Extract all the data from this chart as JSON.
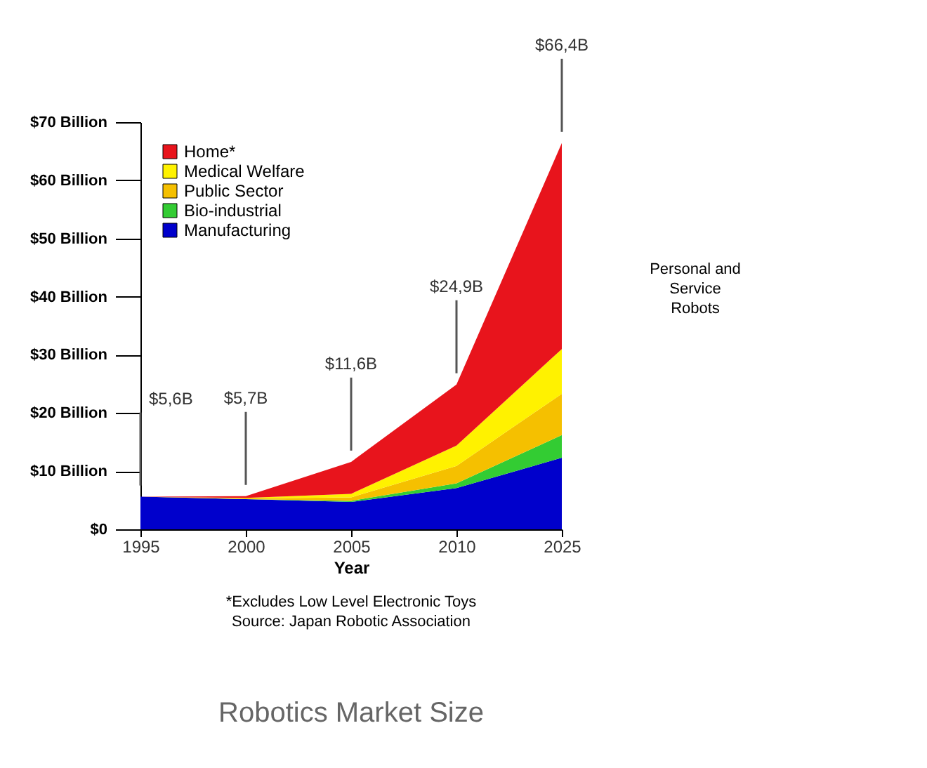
{
  "chart_data": {
    "type": "area",
    "stacked": true,
    "title": "Robotics Market Size",
    "xlabel": "Year",
    "categories": [
      "1995",
      "2000",
      "2005",
      "2010",
      "2025"
    ],
    "series": [
      {
        "name": "Manufacturing",
        "color": "#0000cc",
        "values": [
          5.6,
          5.2,
          4.7,
          7.1,
          12.3
        ]
      },
      {
        "name": "Bio-industrial",
        "color": "#33cc33",
        "values": [
          0,
          0,
          0.2,
          0.8,
          3.9
        ]
      },
      {
        "name": "Public Sector",
        "color": "#f5c000",
        "values": [
          0,
          0.1,
          0.6,
          3,
          7.1
        ]
      },
      {
        "name": "Medical Welfare",
        "color": "#fff200",
        "values": [
          0,
          0.1,
          0.6,
          3.5,
          7.7
        ]
      },
      {
        "name": "Home*",
        "color": "#e8141c",
        "values": [
          0,
          0.3,
          5.5,
          10.5,
          35.4
        ]
      }
    ],
    "ylim": [
      0,
      70
    ],
    "yticks": [
      {
        "value": 0,
        "label": "$0"
      },
      {
        "value": 10,
        "label": "$10 Billion"
      },
      {
        "value": 20,
        "label": "$20 Billion"
      },
      {
        "value": 30,
        "label": "$30 Billion"
      },
      {
        "value": 40,
        "label": "$40 Billion"
      },
      {
        "value": 50,
        "label": "$50 Billion"
      },
      {
        "value": 60,
        "label": "$60 Billion"
      },
      {
        "value": 70,
        "label": "$70 Billion"
      }
    ],
    "grid": false,
    "legend": "top left",
    "annotations": [
      {
        "text": "$5,6B",
        "x": "1995",
        "y": 5.6
      },
      {
        "text": "$5,7B",
        "x": "2000",
        "y": 5.7
      },
      {
        "text": "$11,6B",
        "x": "2005",
        "y": 11.6
      },
      {
        "text": "$24,9B",
        "x": "2010",
        "y": 24.9
      },
      {
        "text": "$66,4B",
        "x": "2025",
        "y": 66.4
      },
      "Personal and Service Robots",
      "*Excludes Low Level Electronic Toys",
      "Source: Japan Robotic Association"
    ]
  }
}
